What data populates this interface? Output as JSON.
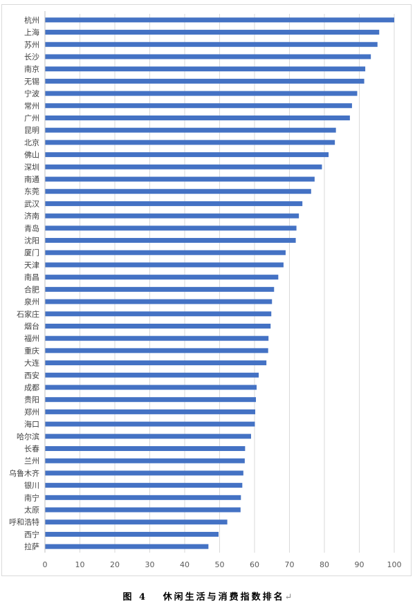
{
  "chart_data": {
    "type": "bar",
    "orientation": "horizontal",
    "title": "",
    "xlabel": "",
    "ylabel": "",
    "xlim": [
      0,
      100
    ],
    "x_ticks": [
      "0",
      "10",
      "20",
      "30",
      "40",
      "50",
      "60",
      "70",
      "80",
      "90",
      "100"
    ],
    "grid": true,
    "legend": "none",
    "bar_color": "#4472C4",
    "categories": [
      "杭州",
      "上海",
      "苏州",
      "长沙",
      "南京",
      "无锡",
      "宁波",
      "常州",
      "广州",
      "昆明",
      "北京",
      "佛山",
      "深圳",
      "南通",
      "东莞",
      "武汉",
      "济南",
      "青岛",
      "沈阳",
      "厦门",
      "天津",
      "南昌",
      "合肥",
      "泉州",
      "石家庄",
      "烟台",
      "福州",
      "重庆",
      "大连",
      "西安",
      "成都",
      "贵阳",
      "郑州",
      "海口",
      "哈尔滨",
      "长春",
      "兰州",
      "乌鲁木齐",
      "银川",
      "南宁",
      "太原",
      "呼和浩特",
      "西宁",
      "拉萨"
    ],
    "values": [
      100,
      95.7,
      95.2,
      93.3,
      91.7,
      91.4,
      89.4,
      87.9,
      87.3,
      83.3,
      83.0,
      81.2,
      79.3,
      77.2,
      76.2,
      73.7,
      72.7,
      72.0,
      71.8,
      68.9,
      68.3,
      66.8,
      65.6,
      65.0,
      64.8,
      64.6,
      64.0,
      63.9,
      63.4,
      61.2,
      60.6,
      60.4,
      60.2,
      60.1,
      59.0,
      57.3,
      57.2,
      56.8,
      56.5,
      56.1,
      56.0,
      52.2,
      49.7,
      46.8
    ]
  },
  "caption": {
    "text": "图 4   休闲生活与消费指数排名",
    "return_mark": "↵"
  }
}
